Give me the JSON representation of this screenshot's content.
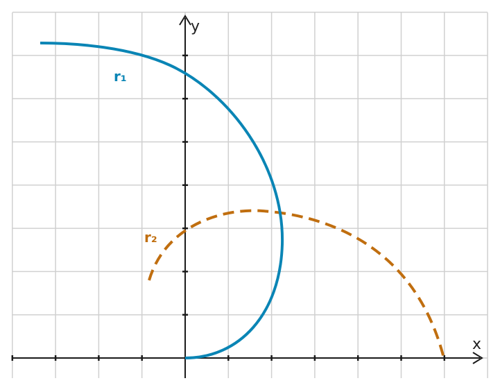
{
  "axes": {
    "x_label": "x",
    "y_label": "y",
    "x_range": [
      -4,
      7
    ],
    "y_range": [
      -0.5,
      8
    ]
  },
  "curves": [
    {
      "label": "r₁",
      "color": "#0a85b5",
      "style": "solid"
    },
    {
      "label": "r₂",
      "color": "#c06e0f",
      "style": "dashed"
    }
  ]
}
